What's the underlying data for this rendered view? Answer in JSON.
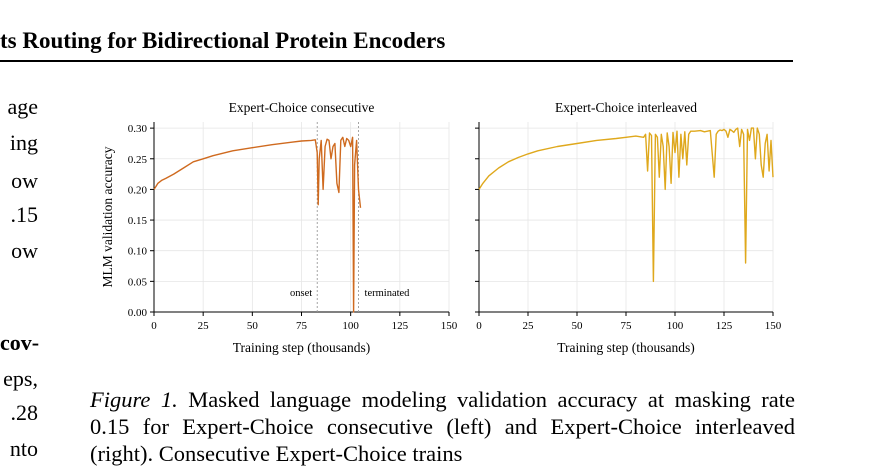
{
  "header": {
    "title": "ts Routing for Bidirectional Protein Encoders"
  },
  "left_column_fragments": [
    {
      "text": "age",
      "bold": false
    },
    {
      "text": "ing",
      "bold": false
    },
    {
      "text": "ow",
      "bold": false
    },
    {
      "text": ".15",
      "bold": false
    },
    {
      "text": "ow",
      "bold": false
    },
    {
      "text": "cov-",
      "bold": true
    },
    {
      "text": "eps,",
      "bold": false
    },
    {
      "text": ".28",
      "bold": false
    },
    {
      "text": "nto",
      "bold": false
    }
  ],
  "caption": {
    "label": "Figure 1.",
    "text": " Masked language modeling validation accuracy at masking rate 0.15 for Expert-Choice consecutive (left) and Expert-Choice interleaved (right). Consecutive Expert-Choice trains"
  },
  "chart_data": [
    {
      "type": "line",
      "title": "Expert-Choice consecutive",
      "xlabel": "Training step (thousands)",
      "ylabel": "MLM validation accuracy",
      "xlim": [
        0,
        150
      ],
      "ylim": [
        0,
        0.31
      ],
      "xticks": [
        0,
        25,
        50,
        75,
        100,
        125,
        150
      ],
      "yticks": [
        0.0,
        0.05,
        0.1,
        0.15,
        0.2,
        0.25,
        0.3
      ],
      "grid": true,
      "color": "#cf6a1f",
      "vlines": [
        {
          "x": 83,
          "label": "onset"
        },
        {
          "x": 104,
          "label": "terminated"
        }
      ],
      "series": [
        {
          "x": [
            0,
            1,
            2,
            4,
            6,
            10,
            15,
            20,
            25,
            30,
            40,
            50,
            60,
            70,
            75,
            80,
            82,
            83,
            83.5,
            84,
            85,
            86,
            87,
            88,
            89,
            90,
            91,
            92,
            93,
            94,
            95,
            96,
            97,
            98,
            99,
            100,
            101,
            101.5,
            102,
            102.5,
            103,
            104,
            105
          ],
          "y": [
            0.2,
            0.205,
            0.21,
            0.215,
            0.218,
            0.225,
            0.235,
            0.245,
            0.25,
            0.255,
            0.263,
            0.268,
            0.273,
            0.277,
            0.279,
            0.28,
            0.281,
            0.26,
            0.175,
            0.25,
            0.28,
            0.2,
            0.27,
            0.282,
            0.28,
            0.25,
            0.27,
            0.275,
            0.21,
            0.195,
            0.28,
            0.285,
            0.27,
            0.283,
            0.28,
            0.27,
            0.285,
            0.0,
            0.24,
            0.26,
            0.28,
            0.2,
            0.17
          ]
        }
      ]
    },
    {
      "type": "line",
      "title": "Expert-Choice interleaved",
      "xlabel": "Training step (thousands)",
      "ylabel": "",
      "xlim": [
        0,
        150
      ],
      "ylim": [
        0,
        0.31
      ],
      "xticks": [
        0,
        25,
        50,
        75,
        100,
        125,
        150
      ],
      "yticks": [
        0.0,
        0.05,
        0.1,
        0.15,
        0.2,
        0.25,
        0.3
      ],
      "grid": true,
      "color": "#dfa81c",
      "vlines": [],
      "series": [
        {
          "x": [
            0,
            2,
            5,
            10,
            15,
            20,
            25,
            30,
            40,
            50,
            60,
            70,
            75,
            80,
            84,
            85,
            86,
            87,
            88,
            89,
            90,
            91,
            92,
            93,
            94,
            95,
            96,
            97,
            98,
            99,
            100,
            101,
            102,
            103,
            104,
            105,
            106,
            107,
            108,
            110,
            113,
            115,
            118,
            120,
            121,
            122,
            123,
            124,
            125,
            126,
            127,
            128,
            129,
            130,
            131,
            132,
            133,
            134,
            135,
            136,
            137,
            138,
            139,
            140,
            141,
            142,
            143,
            144,
            145,
            146,
            147,
            148,
            149,
            150
          ],
          "y": [
            0.2,
            0.21,
            0.222,
            0.235,
            0.245,
            0.252,
            0.258,
            0.263,
            0.27,
            0.275,
            0.28,
            0.283,
            0.285,
            0.287,
            0.285,
            0.29,
            0.23,
            0.292,
            0.288,
            0.05,
            0.29,
            0.285,
            0.22,
            0.29,
            0.27,
            0.2,
            0.292,
            0.27,
            0.21,
            0.293,
            0.26,
            0.295,
            0.22,
            0.29,
            0.25,
            0.294,
            0.24,
            0.29,
            0.295,
            0.295,
            0.296,
            0.294,
            0.296,
            0.22,
            0.29,
            0.295,
            0.297,
            0.296,
            0.298,
            0.295,
            0.285,
            0.298,
            0.296,
            0.293,
            0.298,
            0.3,
            0.27,
            0.298,
            0.29,
            0.08,
            0.298,
            0.28,
            0.3,
            0.3,
            0.25,
            0.3,
            0.29,
            0.24,
            0.22,
            0.275,
            0.29,
            0.23,
            0.28,
            0.22
          ]
        }
      ]
    }
  ]
}
